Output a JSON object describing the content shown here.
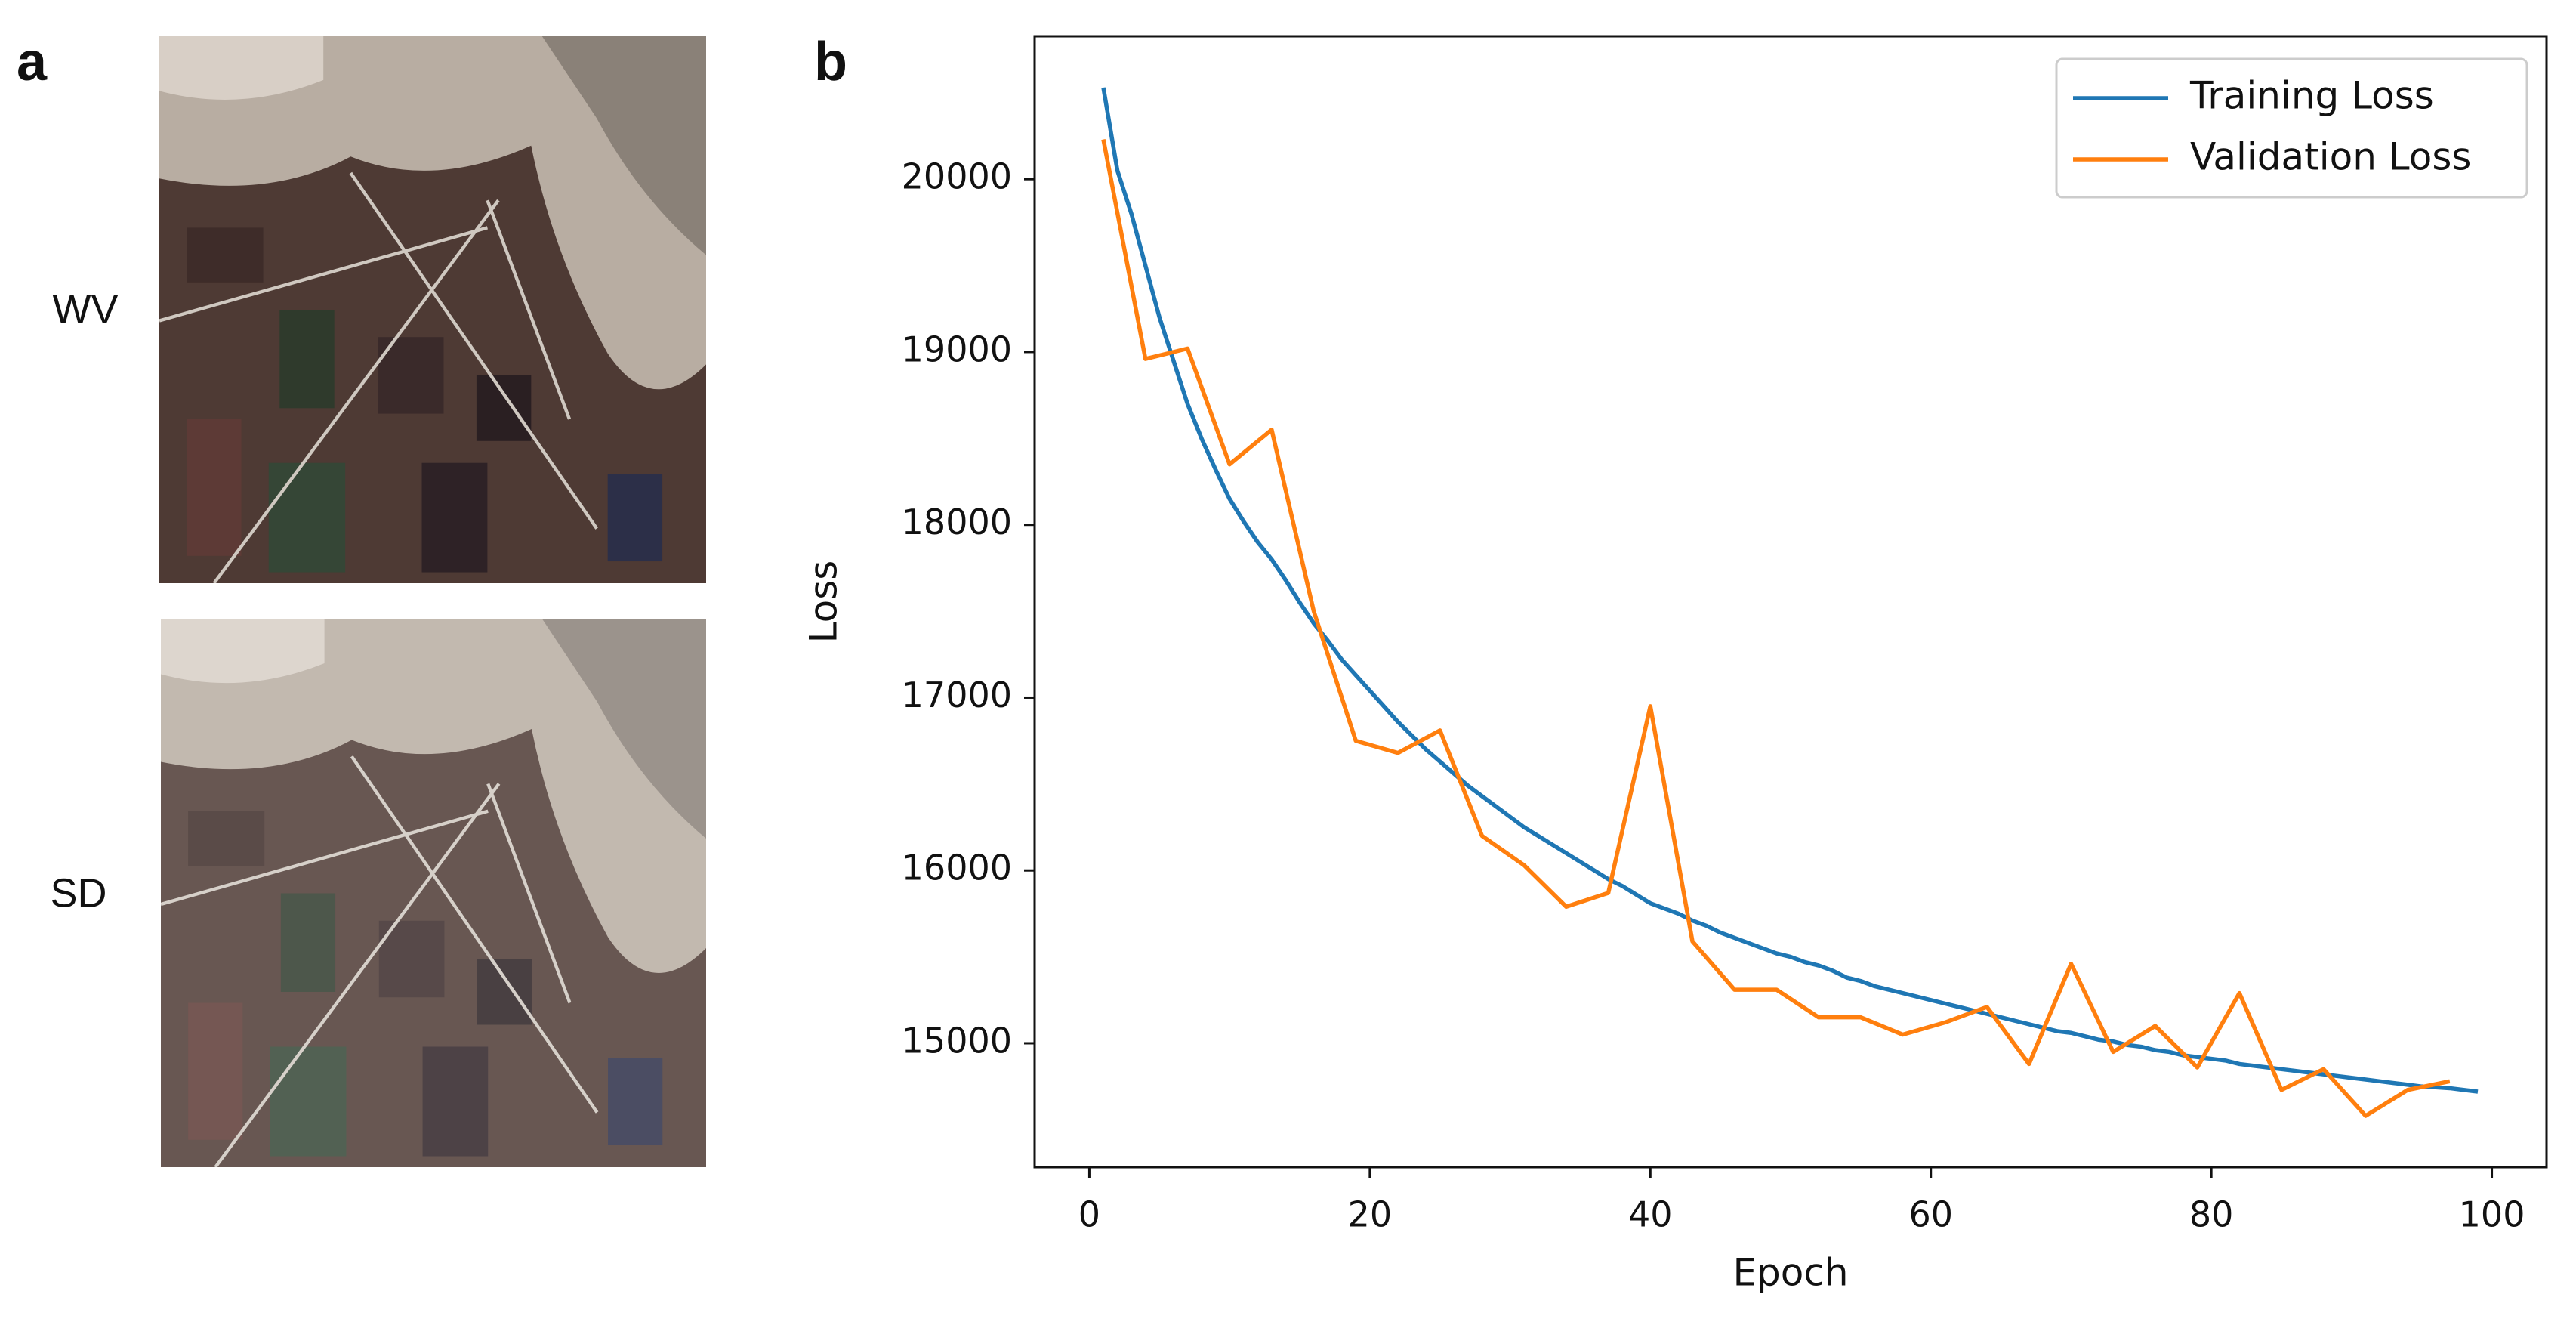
{
  "panel_a": {
    "label": "a",
    "images": [
      {
        "label": "WV"
      },
      {
        "label": "SD"
      }
    ]
  },
  "chart_data": {
    "type": "line",
    "panel_label": "b",
    "xlabel": "Epoch",
    "ylabel": "Loss",
    "xlim": [
      -3.9,
      103.9
    ],
    "ylim": [
      14283,
      20827
    ],
    "xticks": [
      0,
      20,
      40,
      60,
      80,
      100
    ],
    "yticks": [
      15000,
      16000,
      17000,
      18000,
      19000,
      20000
    ],
    "grid": false,
    "legend": "upper right",
    "series": [
      {
        "name": "Training Loss",
        "color": "#1f77b4",
        "x": [
          1,
          2,
          3,
          4,
          5,
          6,
          7,
          8,
          9,
          10,
          11,
          12,
          13,
          14,
          15,
          16,
          17,
          18,
          19,
          20,
          21,
          22,
          23,
          24,
          25,
          26,
          27,
          28,
          29,
          30,
          31,
          32,
          33,
          34,
          35,
          36,
          37,
          38,
          39,
          40,
          41,
          42,
          43,
          44,
          45,
          46,
          47,
          48,
          49,
          50,
          51,
          52,
          53,
          54,
          55,
          56,
          57,
          58,
          59,
          60,
          61,
          62,
          63,
          64,
          65,
          66,
          67,
          68,
          69,
          70,
          71,
          72,
          73,
          74,
          75,
          76,
          77,
          78,
          79,
          80,
          81,
          82,
          83,
          84,
          85,
          86,
          87,
          88,
          89,
          90,
          91,
          92,
          93,
          94,
          95,
          96,
          97,
          98,
          99
        ],
        "values": [
          20530,
          20050,
          19800,
          19500,
          19200,
          18950,
          18700,
          18500,
          18320,
          18150,
          18020,
          17900,
          17800,
          17680,
          17550,
          17430,
          17330,
          17220,
          17130,
          17040,
          16950,
          16860,
          16780,
          16700,
          16630,
          16560,
          16490,
          16430,
          16370,
          16310,
          16250,
          16200,
          16150,
          16100,
          16050,
          16000,
          15950,
          15910,
          15860,
          15810,
          15780,
          15750,
          15710,
          15680,
          15640,
          15610,
          15580,
          15550,
          15520,
          15500,
          15470,
          15450,
          15420,
          15380,
          15360,
          15330,
          15310,
          15290,
          15270,
          15250,
          15230,
          15210,
          15190,
          15170,
          15150,
          15130,
          15110,
          15090,
          15070,
          15060,
          15040,
          15020,
          15010,
          14990,
          14980,
          14960,
          14950,
          14930,
          14920,
          14910,
          14900,
          14880,
          14870,
          14860,
          14850,
          14840,
          14830,
          14820,
          14810,
          14800,
          14790,
          14780,
          14770,
          14760,
          14750,
          14745,
          14740,
          14730,
          14720
        ]
      },
      {
        "name": "Validation Loss",
        "color": "#ff7f0e",
        "x": [
          1,
          4,
          7,
          10,
          13,
          16,
          19,
          22,
          25,
          28,
          31,
          34,
          37,
          40,
          43,
          46,
          49,
          52,
          55,
          58,
          61,
          64,
          67,
          70,
          73,
          76,
          79,
          82,
          85,
          88,
          91,
          94,
          97
        ],
        "values": [
          20230,
          18960,
          19020,
          18350,
          18550,
          17500,
          16750,
          16680,
          16810,
          16200,
          16030,
          15790,
          15870,
          16950,
          15590,
          15310,
          15310,
          15150,
          15150,
          15050,
          15120,
          15210,
          14880,
          15460,
          14950,
          15100,
          14860,
          15290,
          14730,
          14850,
          14580,
          14730,
          14780
        ]
      }
    ]
  }
}
